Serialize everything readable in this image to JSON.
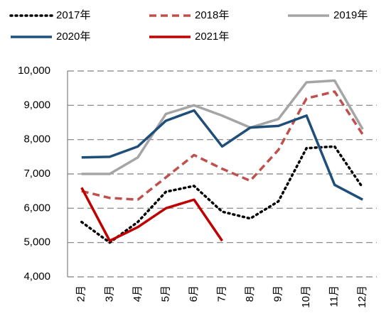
{
  "chart_data": {
    "type": "line",
    "categories": [
      "2月",
      "3月",
      "4月",
      "5月",
      "6月",
      "7月",
      "8月",
      "9月",
      "10月",
      "11月",
      "12月"
    ],
    "series": [
      {
        "name": "2017年",
        "color": "#000000",
        "style": "dotted",
        "values": [
          5600,
          5000,
          5600,
          6480,
          6650,
          5900,
          5700,
          6200,
          7750,
          7800,
          6600
        ]
      },
      {
        "name": "2018年",
        "color": "#c0504d",
        "style": "dashed",
        "values": [
          6500,
          6300,
          6250,
          6900,
          7550,
          7150,
          6800,
          7700,
          9200,
          9400,
          8150
        ]
      },
      {
        "name": "2019年",
        "color": "#a5a5a5",
        "style": "solid",
        "values": [
          7000,
          7000,
          7480,
          8750,
          9000,
          8700,
          8350,
          8600,
          9670,
          9720,
          8300
        ]
      },
      {
        "name": "2020年",
        "color": "#1f4e79",
        "style": "solid",
        "values": [
          7480,
          7500,
          7800,
          8550,
          8850,
          7800,
          8350,
          8400,
          8700,
          6680,
          6250
        ]
      },
      {
        "name": "2021年",
        "color": "#c00000",
        "style": "solid",
        "values": [
          6600,
          5050,
          5450,
          6000,
          6250,
          5050,
          null,
          null,
          null,
          null,
          null
        ]
      }
    ],
    "ylim": [
      4000,
      10000
    ],
    "yticks": [
      {
        "value": 4000,
        "label": "4,000"
      },
      {
        "value": 5000,
        "label": "5,000"
      },
      {
        "value": 6000,
        "label": "6,000"
      },
      {
        "value": 7000,
        "label": "7,000"
      },
      {
        "value": 8000,
        "label": "8,000"
      },
      {
        "value": 9000,
        "label": "9,000"
      },
      {
        "value": 10000,
        "label": "10,000"
      }
    ],
    "grid": true,
    "legend": "top"
  }
}
